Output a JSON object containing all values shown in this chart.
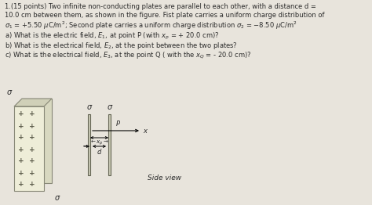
{
  "background_color": "#e8e4dc",
  "text_color": "#2a2a2a",
  "plate_fill": "#eeedd8",
  "plate_edge": "#888877",
  "sigma_label": "σ",
  "line1": "1.(15 points) Two infinite non-conducting plates are parallel to each other, with a distance d =",
  "line2": "10.0 cm between them, as shown in the figure. Fist plate carries a uniform charge distribution of",
  "line3": "σ₁ = +5.50 μC/m²; Second plate carries a uniform charge distribution σ₂ = −8.50 μC/m²",
  "qa": "a) What is the electric field, E₁, at point P (with xₚ = + 20.0 cm)?",
  "qb": "b) What is the electrical field, E₂, at the point between the two plates?",
  "qc": "c) What is the electrical field, E₃, at the point Q ( with the x₀ = - 20.0 cm)?",
  "side_view": "Side view"
}
